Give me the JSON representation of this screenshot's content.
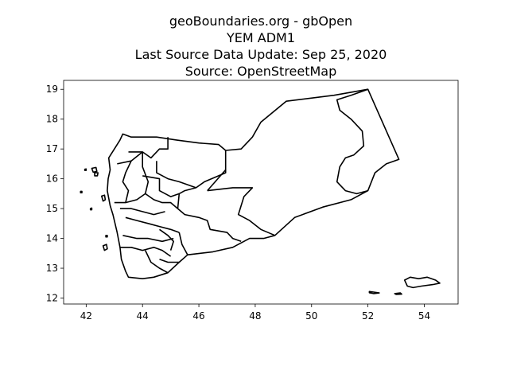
{
  "figure": {
    "title_lines": [
      "geoBoundaries.org - gbOpen",
      "YEM ADM1",
      "Last Source Data Update: Sep 25, 2020",
      "Source: OpenStreetMap"
    ]
  },
  "chart_data": {
    "type": "map",
    "xlim": [
      41.2,
      55.2
    ],
    "ylim": [
      11.8,
      19.3
    ],
    "xticks": [
      42,
      44,
      46,
      48,
      50,
      52,
      54
    ],
    "yticks": [
      12,
      13,
      14,
      15,
      16,
      17,
      18,
      19
    ],
    "grid": false,
    "stroke_color": "#000000",
    "regions": [
      {
        "name": "outline",
        "closed": true,
        "coords": [
          [
            43.3,
            17.5
          ],
          [
            43.6,
            17.4
          ],
          [
            44.5,
            17.4
          ],
          [
            45.2,
            17.3
          ],
          [
            46.0,
            17.2
          ],
          [
            46.7,
            17.15
          ],
          [
            46.95,
            16.95
          ],
          [
            47.5,
            17.0
          ],
          [
            47.9,
            17.4
          ],
          [
            48.2,
            17.9
          ],
          [
            49.1,
            18.6
          ],
          [
            50.8,
            18.8
          ],
          [
            52.0,
            19.0
          ],
          [
            53.1,
            16.65
          ],
          [
            52.65,
            16.5
          ],
          [
            52.25,
            16.2
          ],
          [
            52.0,
            15.6
          ],
          [
            51.4,
            15.3
          ],
          [
            50.4,
            15.05
          ],
          [
            49.4,
            14.7
          ],
          [
            48.7,
            14.1
          ],
          [
            48.3,
            14.0
          ],
          [
            47.8,
            14.0
          ],
          [
            47.2,
            13.7
          ],
          [
            46.5,
            13.55
          ],
          [
            45.6,
            13.45
          ],
          [
            45.3,
            13.2
          ],
          [
            44.9,
            12.85
          ],
          [
            44.4,
            12.7
          ],
          [
            44.0,
            12.65
          ],
          [
            43.5,
            12.7
          ],
          [
            43.4,
            12.9
          ],
          [
            43.25,
            13.3
          ],
          [
            43.2,
            13.7
          ],
          [
            43.1,
            14.2
          ],
          [
            42.95,
            14.8
          ],
          [
            42.85,
            15.1
          ],
          [
            42.75,
            15.6
          ],
          [
            42.78,
            16.0
          ],
          [
            42.85,
            16.3
          ],
          [
            42.8,
            16.7
          ],
          [
            43.0,
            17.0
          ],
          [
            43.2,
            17.3
          ]
        ]
      },
      {
        "name": "inner-east",
        "closed": false,
        "coords": [
          [
            52.0,
            19.0
          ],
          [
            51.4,
            18.8
          ],
          [
            50.9,
            18.65
          ],
          [
            51.0,
            18.3
          ],
          [
            51.4,
            18.0
          ],
          [
            51.8,
            17.6
          ],
          [
            51.85,
            17.1
          ],
          [
            51.5,
            16.8
          ],
          [
            51.2,
            16.7
          ],
          [
            51.0,
            16.4
          ],
          [
            50.9,
            15.9
          ],
          [
            51.2,
            15.6
          ],
          [
            51.6,
            15.5
          ],
          [
            52.0,
            15.6
          ]
        ]
      },
      {
        "name": "al-jawf-south",
        "closed": false,
        "coords": [
          [
            46.3,
            15.6
          ],
          [
            47.2,
            15.7
          ],
          [
            47.9,
            15.7
          ],
          [
            47.6,
            15.4
          ],
          [
            47.5,
            15.1
          ],
          [
            47.4,
            14.8
          ],
          [
            47.8,
            14.6
          ],
          [
            48.2,
            14.3
          ],
          [
            48.7,
            14.1
          ]
        ]
      },
      {
        "name": "marib-west",
        "closed": false,
        "coords": [
          [
            46.95,
            16.95
          ],
          [
            46.95,
            16.2
          ],
          [
            46.2,
            15.9
          ],
          [
            45.9,
            15.7
          ],
          [
            45.5,
            15.6
          ],
          [
            45.3,
            15.5
          ],
          [
            45.25,
            15.0
          ],
          [
            45.5,
            14.8
          ],
          [
            46.0,
            14.7
          ],
          [
            46.3,
            14.6
          ],
          [
            46.4,
            14.3
          ],
          [
            47.0,
            14.2
          ],
          [
            47.2,
            14.0
          ],
          [
            47.5,
            13.9
          ]
        ]
      },
      {
        "name": "marib-link",
        "closed": false,
        "coords": [
          [
            46.95,
            16.3
          ],
          [
            46.3,
            15.6
          ]
        ]
      },
      {
        "name": "saada-jawf",
        "closed": false,
        "coords": [
          [
            44.9,
            17.4
          ],
          [
            44.9,
            17.0
          ],
          [
            44.6,
            17.0
          ],
          [
            44.3,
            16.7
          ],
          [
            44.0,
            16.9
          ],
          [
            43.5,
            16.9
          ]
        ]
      },
      {
        "name": "saada-south",
        "closed": false,
        "coords": [
          [
            44.5,
            16.6
          ],
          [
            44.5,
            16.2
          ],
          [
            44.9,
            16.0
          ],
          [
            45.3,
            15.9
          ],
          [
            45.9,
            15.7
          ]
        ]
      },
      {
        "name": "amran-west",
        "closed": false,
        "coords": [
          [
            43.1,
            16.5
          ],
          [
            43.6,
            16.6
          ],
          [
            44.0,
            16.9
          ]
        ]
      },
      {
        "name": "amran-east",
        "closed": false,
        "coords": [
          [
            44.0,
            16.9
          ],
          [
            44.0,
            16.4
          ],
          [
            44.2,
            15.9
          ],
          [
            44.1,
            15.5
          ],
          [
            43.8,
            15.3
          ],
          [
            43.4,
            15.2
          ],
          [
            43.0,
            15.2
          ]
        ]
      },
      {
        "name": "hajjah-east",
        "closed": false,
        "coords": [
          [
            43.6,
            16.6
          ],
          [
            43.4,
            16.2
          ],
          [
            43.3,
            15.9
          ],
          [
            43.5,
            15.6
          ],
          [
            43.4,
            15.2
          ]
        ]
      },
      {
        "name": "sanaa-west",
        "closed": false,
        "coords": [
          [
            44.0,
            16.1
          ],
          [
            44.6,
            16.0
          ],
          [
            44.6,
            15.6
          ],
          [
            45.0,
            15.4
          ],
          [
            45.3,
            15.5
          ]
        ]
      },
      {
        "name": "sanaa-south",
        "closed": false,
        "coords": [
          [
            44.1,
            15.5
          ],
          [
            44.4,
            15.3
          ],
          [
            44.7,
            15.2
          ],
          [
            45.0,
            15.2
          ],
          [
            45.25,
            15.0
          ]
        ]
      },
      {
        "name": "mahwit-raymah",
        "closed": false,
        "coords": [
          [
            43.2,
            15.0
          ],
          [
            43.6,
            15.0
          ],
          [
            44.0,
            14.9
          ],
          [
            44.4,
            14.8
          ],
          [
            44.8,
            14.9
          ]
        ]
      },
      {
        "name": "dhamar-north",
        "closed": false,
        "coords": [
          [
            43.4,
            14.7
          ],
          [
            43.8,
            14.6
          ],
          [
            44.2,
            14.5
          ],
          [
            44.6,
            14.4
          ],
          [
            45.0,
            14.3
          ],
          [
            45.3,
            14.2
          ]
        ]
      },
      {
        "name": "ibb-north",
        "closed": false,
        "coords": [
          [
            43.3,
            14.1
          ],
          [
            43.8,
            14.0
          ],
          [
            44.2,
            14.0
          ],
          [
            44.7,
            13.9
          ],
          [
            45.1,
            14.0
          ]
        ]
      },
      {
        "name": "bayda-west",
        "closed": false,
        "coords": [
          [
            45.3,
            14.2
          ],
          [
            45.4,
            13.8
          ],
          [
            45.6,
            13.45
          ]
        ]
      },
      {
        "name": "taiz-north",
        "closed": false,
        "coords": [
          [
            43.2,
            13.7
          ],
          [
            43.6,
            13.7
          ],
          [
            44.0,
            13.6
          ],
          [
            44.4,
            13.7
          ],
          [
            44.7,
            13.6
          ],
          [
            45.0,
            13.4
          ]
        ]
      },
      {
        "name": "lahij-west",
        "closed": false,
        "coords": [
          [
            44.1,
            13.6
          ],
          [
            44.3,
            13.2
          ],
          [
            44.6,
            13.0
          ],
          [
            44.9,
            12.85
          ]
        ]
      },
      {
        "name": "dhale",
        "closed": false,
        "coords": [
          [
            44.6,
            14.3
          ],
          [
            44.9,
            14.1
          ],
          [
            45.1,
            13.9
          ],
          [
            45.0,
            13.6
          ]
        ]
      },
      {
        "name": "aden-lahij",
        "closed": false,
        "coords": [
          [
            44.6,
            13.3
          ],
          [
            44.9,
            13.2
          ],
          [
            45.3,
            13.2
          ]
        ]
      },
      {
        "name": "island-socotra",
        "closed": true,
        "coords": [
          [
            53.3,
            12.6
          ],
          [
            53.5,
            12.7
          ],
          [
            53.8,
            12.65
          ],
          [
            54.1,
            12.7
          ],
          [
            54.4,
            12.6
          ],
          [
            54.55,
            12.5
          ],
          [
            54.3,
            12.45
          ],
          [
            53.9,
            12.4
          ],
          [
            53.6,
            12.35
          ],
          [
            53.4,
            12.4
          ]
        ]
      },
      {
        "name": "island-abd-al-kuri",
        "closed": true,
        "coords": [
          [
            52.05,
            12.22
          ],
          [
            52.2,
            12.2
          ],
          [
            52.4,
            12.17
          ],
          [
            52.2,
            12.15
          ],
          [
            52.05,
            12.18
          ]
        ]
      },
      {
        "name": "island-samhah",
        "closed": true,
        "coords": [
          [
            52.95,
            12.15
          ],
          [
            53.15,
            12.17
          ],
          [
            53.2,
            12.13
          ],
          [
            53.0,
            12.12
          ]
        ]
      },
      {
        "name": "island-kamaran",
        "closed": true,
        "coords": [
          [
            42.55,
            15.42
          ],
          [
            42.65,
            15.45
          ],
          [
            42.68,
            15.3
          ],
          [
            42.6,
            15.25
          ]
        ]
      },
      {
        "name": "island-hanish-zuqar",
        "closed": true,
        "coords": [
          [
            42.6,
            13.75
          ],
          [
            42.72,
            13.8
          ],
          [
            42.75,
            13.65
          ],
          [
            42.65,
            13.6
          ]
        ]
      },
      {
        "name": "island-farasan-a",
        "closed": true,
        "coords": [
          [
            42.2,
            16.35
          ],
          [
            42.35,
            16.38
          ],
          [
            42.38,
            16.25
          ],
          [
            42.25,
            16.22
          ]
        ]
      },
      {
        "name": "island-farasan-b",
        "closed": true,
        "coords": [
          [
            42.3,
            16.2
          ],
          [
            42.42,
            16.2
          ],
          [
            42.4,
            16.1
          ],
          [
            42.3,
            16.1
          ]
        ]
      },
      {
        "name": "island-tiny-a",
        "closed": true,
        "coords": [
          [
            41.95,
            16.32
          ],
          [
            42.0,
            16.33
          ],
          [
            42.0,
            16.28
          ],
          [
            41.95,
            16.28
          ]
        ]
      },
      {
        "name": "island-tiny-b",
        "closed": true,
        "coords": [
          [
            41.8,
            15.58
          ],
          [
            41.85,
            15.58
          ],
          [
            41.85,
            15.53
          ],
          [
            41.8,
            15.53
          ]
        ]
      },
      {
        "name": "island-tiny-c",
        "closed": true,
        "coords": [
          [
            42.15,
            15.0
          ],
          [
            42.2,
            15.02
          ],
          [
            42.2,
            14.96
          ],
          [
            42.15,
            14.96
          ]
        ]
      },
      {
        "name": "island-tiny-d",
        "closed": true,
        "coords": [
          [
            42.7,
            14.1
          ],
          [
            42.75,
            14.1
          ],
          [
            42.75,
            14.05
          ],
          [
            42.7,
            14.05
          ]
        ]
      }
    ]
  }
}
